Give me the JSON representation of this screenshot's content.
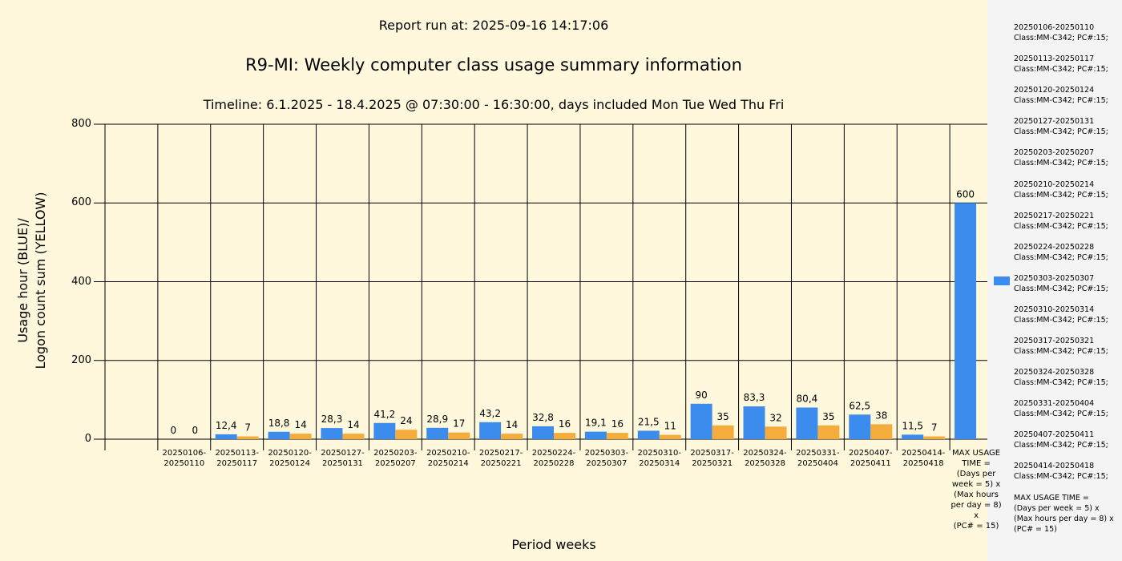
{
  "header": {
    "report_run": "Report run at: 2025-09-16 14:17:06",
    "title": "R9-MI: Weekly computer class usage summary information",
    "timeline": "Timeline:  6.1.2025  - 18.4.2025  @  07:30:00 -  16:30:00, days included Mon Tue Wed Thu Fri"
  },
  "colors": {
    "usage": "#3b8ced",
    "logon": "#f4ad3c",
    "background": "#fff8dc",
    "legend_background": "#f4f4f4"
  },
  "chart_data": {
    "type": "bar",
    "ylabel": "Usage hour (BLUE)/\nLogon count sum (YELLOW)",
    "xlabel": "Period weeks",
    "ylim": [
      0,
      800
    ],
    "yticks": [
      "800",
      "600",
      "400",
      "200",
      "0"
    ],
    "grid": true,
    "legend_position": "right",
    "categories": [
      "20250106-\n20250110",
      "20250113-\n20250117",
      "20250120-\n20250124",
      "20250127-\n20250131",
      "20250203-\n20250207",
      "20250210-\n20250214",
      "20250217-\n20250221",
      "20250224-\n20250228",
      "20250303-\n20250307",
      "20250310-\n20250314",
      "20250317-\n20250321",
      "20250324-\n20250328",
      "20250331-\n20250404",
      "20250407-\n20250411",
      "20250414-\n20250418",
      "MAX USAGE\nTIME =\n(Days per\nweek = 5) x\n(Max hours\nper day = 8) x\n(PC# = 15)"
    ],
    "series": [
      {
        "color": "#3b8ced",
        "values": [
          0,
          12.4,
          18.8,
          28.3,
          41.2,
          28.9,
          43.2,
          32.8,
          19.1,
          21.5,
          90,
          83.3,
          80.4,
          62.5,
          11.5,
          600
        ],
        "labels": [
          "0",
          "12,4",
          "18,8",
          "28,3",
          "41,2",
          "28,9",
          "43,2",
          "32,8",
          "19,1",
          "21,5",
          "90",
          "83,3",
          "80,4",
          "62,5",
          "11,5",
          "600"
        ]
      },
      {
        "color": "#f4ad3c",
        "values": [
          0,
          7,
          14,
          14,
          24,
          17,
          14,
          16,
          16,
          11,
          35,
          32,
          35,
          38,
          7,
          null
        ],
        "labels": [
          "0",
          "7",
          "14",
          "14",
          "24",
          "17",
          "14",
          "16",
          "16",
          "11",
          "35",
          "32",
          "35",
          "38",
          "7",
          ""
        ]
      }
    ],
    "legend": [
      "20250106-20250110\nClass:MM-C342; PC#:15;",
      "20250113-20250117\nClass:MM-C342; PC#:15;",
      "20250120-20250124\nClass:MM-C342; PC#:15;",
      "20250127-20250131\nClass:MM-C342; PC#:15;",
      "20250203-20250207\nClass:MM-C342; PC#:15;",
      "20250210-20250214\nClass:MM-C342; PC#:15;",
      "20250217-20250221\nClass:MM-C342; PC#:15;",
      "20250224-20250228\nClass:MM-C342; PC#:15;",
      "20250303-20250307\nClass:MM-C342; PC#:15;",
      "20250310-20250314\nClass:MM-C342; PC#:15;",
      "20250317-20250321\nClass:MM-C342; PC#:15;",
      "20250324-20250328\nClass:MM-C342; PC#:15;",
      "20250331-20250404\nClass:MM-C342; PC#:15;",
      "20250407-20250411\nClass:MM-C342; PC#:15;",
      "20250414-20250418\nClass:MM-C342; PC#:15;",
      "MAX USAGE TIME =\n (Days per week = 5) x (Max hours per day = 8) x (PC# = 15)"
    ],
    "legend_highlight_index": 8
  }
}
